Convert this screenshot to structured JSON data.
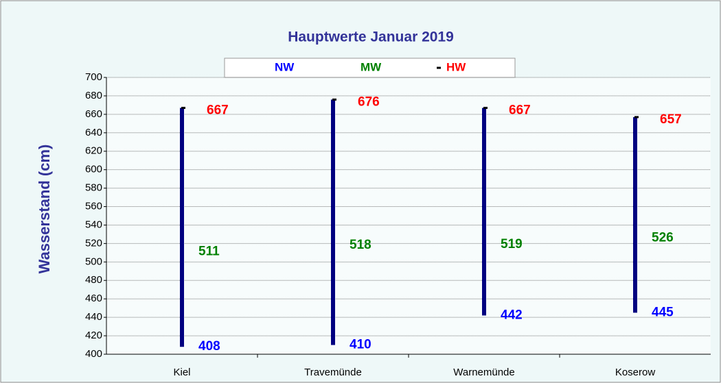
{
  "chart_data": {
    "type": "range",
    "title": "Hauptwerte Januar 2019",
    "y_label": "Wasserstand (cm)",
    "categories": [
      "Kiel",
      "Travemünde",
      "Warnemünde",
      "Koserow"
    ],
    "series": [
      {
        "name": "NW",
        "color": "#0000ff",
        "values": [
          408,
          410,
          442,
          445
        ]
      },
      {
        "name": "MW",
        "color": "#008000",
        "values": [
          511,
          518,
          519,
          526
        ]
      },
      {
        "name": "HW",
        "color": "#ff0000",
        "values": [
          667,
          676,
          667,
          657
        ]
      }
    ],
    "bar_color": "#000080",
    "ylim": [
      400,
      700
    ],
    "yticks": [
      400,
      420,
      440,
      460,
      480,
      500,
      520,
      540,
      560,
      580,
      600,
      620,
      640,
      660,
      680,
      700
    ],
    "grid": true
  }
}
